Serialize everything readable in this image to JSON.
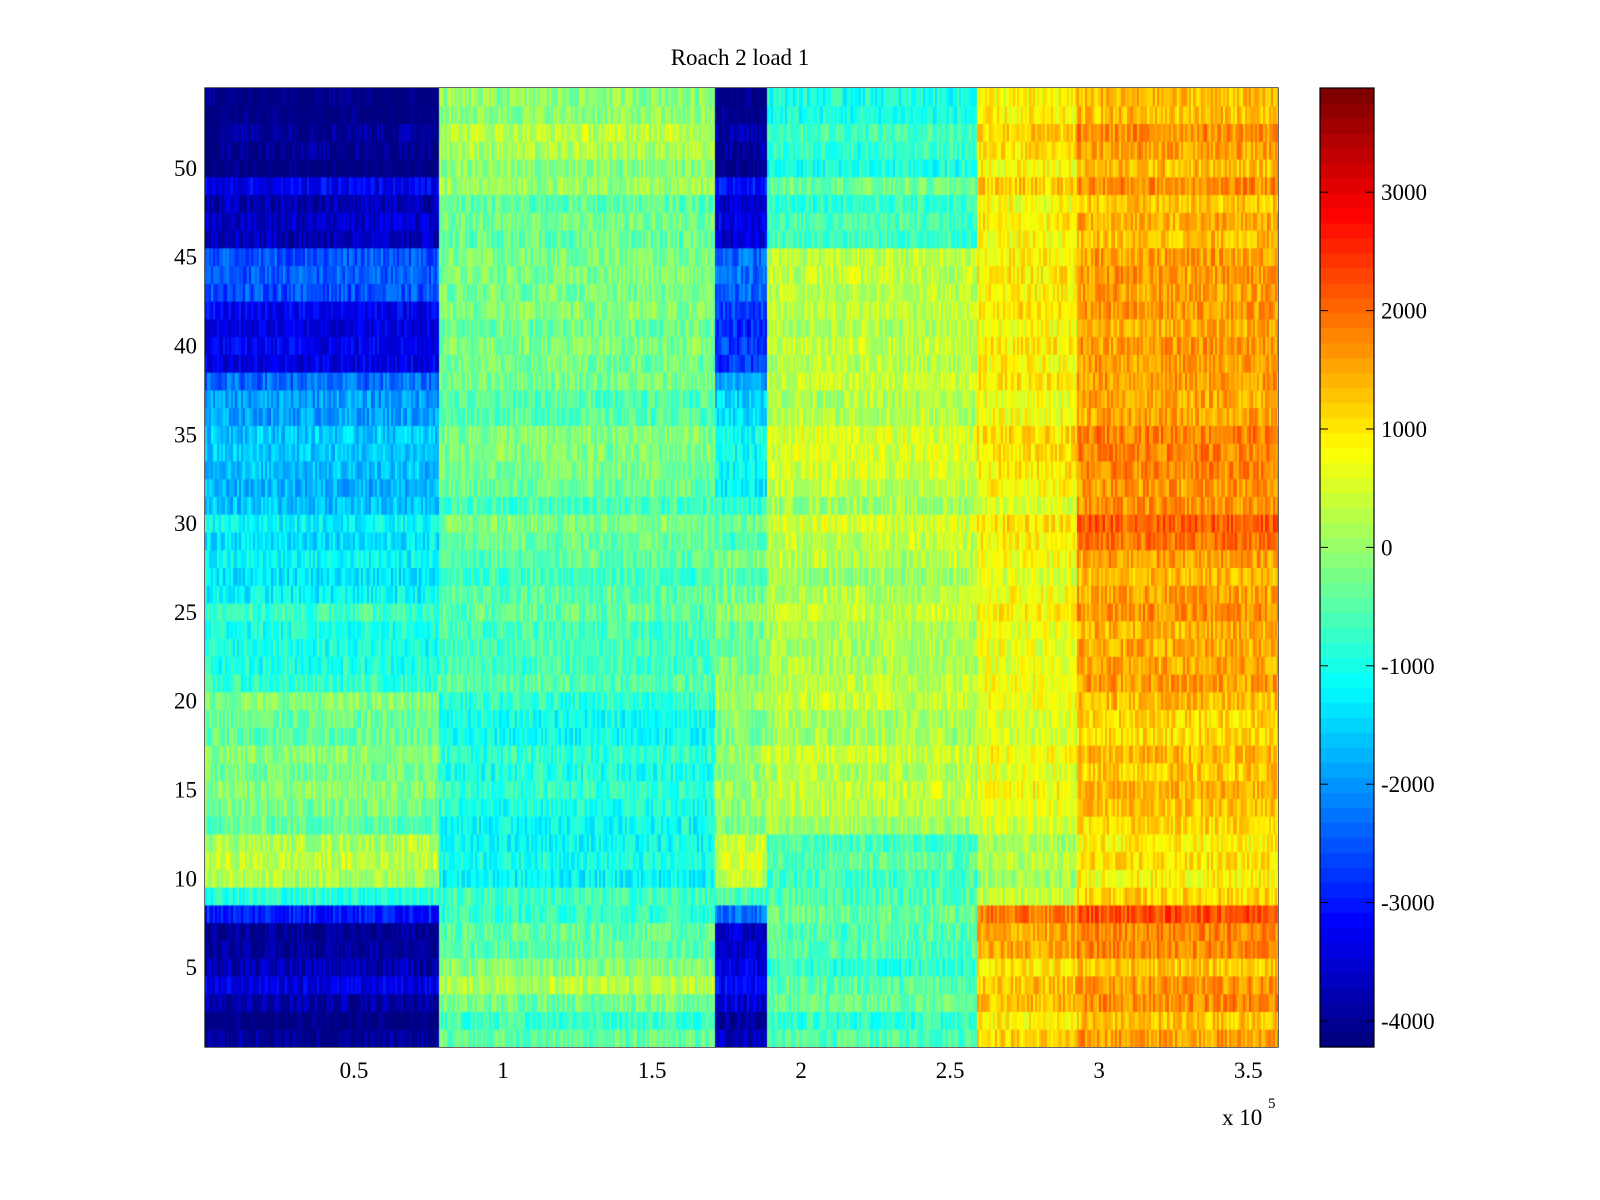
{
  "chart_data": {
    "type": "heatmap",
    "title": "Roach 2 load 1",
    "xlabel": "",
    "ylabel": "",
    "x_exponent_label": "x 10",
    "x_exponent": "5",
    "xlim": [
      0,
      360000
    ],
    "ylim": [
      0.5,
      54.5
    ],
    "clim": [
      -4220,
      3880
    ],
    "colormap": "jet",
    "xticks": [
      50000,
      100000,
      150000,
      200000,
      250000,
      300000,
      350000
    ],
    "xtick_labels": [
      "0.5",
      "1",
      "1.5",
      "2",
      "2.5",
      "3",
      "3.5"
    ],
    "yticks": [
      5,
      10,
      15,
      20,
      25,
      30,
      35,
      40,
      45,
      50
    ],
    "ytick_labels": [
      "5",
      "10",
      "15",
      "20",
      "25",
      "30",
      "35",
      "40",
      "45",
      "50"
    ],
    "colorbar_ticks": [
      3000,
      2000,
      1000,
      0,
      -1000,
      -2000,
      -3000,
      -4000
    ],
    "colorbar_tick_labels": [
      "3000",
      "2000",
      "1000",
      "0",
      "-1000",
      "-2000",
      "-3000",
      "-4000"
    ],
    "x_segments": [
      0,
      78000,
      171000,
      188000,
      259000,
      292000,
      360000
    ],
    "row_bands": [
      {
        "rows": [
          1,
          3
        ],
        "values": [
          -4100,
          -500,
          -3700,
          -600,
          1100,
          1500
        ]
      },
      {
        "rows": [
          4,
          5
        ],
        "values": [
          -3500,
          100,
          -3200,
          -600,
          1200,
          1500
        ]
      },
      {
        "rows": [
          6,
          7
        ],
        "values": [
          -3800,
          -200,
          -3300,
          -300,
          1700,
          2000
        ]
      },
      {
        "rows": [
          8,
          8
        ],
        "values": [
          -3000,
          -800,
          -2300,
          -400,
          1800,
          2200
        ]
      },
      {
        "rows": [
          9,
          9
        ],
        "values": [
          -700,
          -500,
          -500,
          -400,
          500,
          1300
        ]
      },
      {
        "rows": [
          10,
          12
        ],
        "values": [
          300,
          -1000,
          500,
          -500,
          200,
          1000
        ]
      },
      {
        "rows": [
          13,
          20
        ],
        "values": [
          -200,
          -900,
          0,
          300,
          700,
          1300
        ]
      },
      {
        "rows": [
          21,
          25
        ],
        "values": [
          -900,
          -600,
          -200,
          200,
          700,
          1500
        ]
      },
      {
        "rows": [
          26,
          28
        ],
        "values": [
          -1200,
          -500,
          -300,
          200,
          700,
          1500
        ]
      },
      {
        "rows": [
          29,
          31
        ],
        "values": [
          -1400,
          -400,
          -600,
          300,
          800,
          1900
        ]
      },
      {
        "rows": [
          32,
          37
        ],
        "values": [
          -1800,
          -400,
          -1300,
          300,
          800,
          1600
        ]
      },
      {
        "rows": [
          38,
          38
        ],
        "values": [
          -2400,
          -300,
          -2000,
          300,
          900,
          1500
        ]
      },
      {
        "rows": [
          39,
          42
        ],
        "values": [
          -3300,
          -200,
          -2700,
          300,
          900,
          1600
        ]
      },
      {
        "rows": [
          43,
          45
        ],
        "values": [
          -2500,
          -200,
          -2300,
          300,
          900,
          1600
        ]
      },
      {
        "rows": [
          46,
          49
        ],
        "values": [
          -3500,
          -200,
          -3300,
          -500,
          1000,
          1500
        ]
      },
      {
        "rows": [
          50,
          54
        ],
        "values": [
          -4100,
          100,
          -4000,
          -800,
          1000,
          1500
        ]
      }
    ]
  }
}
